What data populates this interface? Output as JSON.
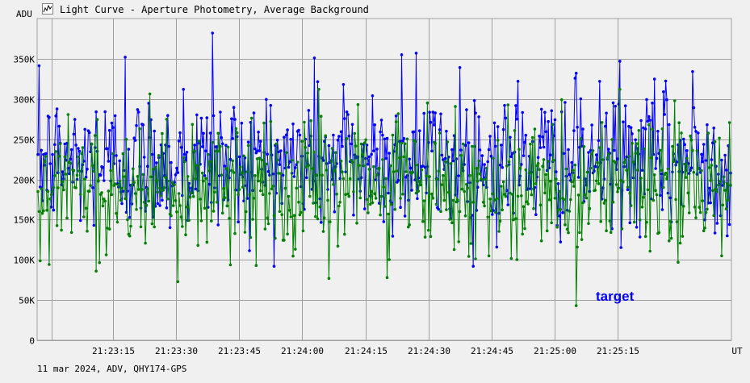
{
  "window": {
    "title": "Light Curve - Aperture Photometry, Average Background",
    "icon": "chart-icon"
  },
  "footer": {
    "info": "11 mar 2024, ADV, QHY174-GPS"
  },
  "colors": {
    "background": "#f0f0f0",
    "grid": "#a0a0a0",
    "axis": "#000000",
    "series_target": "#0000ff",
    "series_comparison": "#008000",
    "label_target": "#0000ff"
  },
  "chart_data": {
    "type": "line",
    "title": "Light Curve - Aperture Photometry, Average Background",
    "xlabel": "UT",
    "ylabel": "ADU",
    "x_start": "21:22:57",
    "x_end": "21:25:42",
    "x_ticks": [
      "21:23:15",
      "21:23:30",
      "21:23:45",
      "21:24:00",
      "21:24:15",
      "21:24:30",
      "21:24:45",
      "21:25:00",
      "21:25:15"
    ],
    "x_unit_label": "UT",
    "y_unit_label": "ADU",
    "y_ticks": [
      "0",
      "50K",
      "100K",
      "150K",
      "200K",
      "250K",
      "300K",
      "350K"
    ],
    "ylim": [
      0,
      400000
    ],
    "grid": true,
    "annotations": [
      {
        "text": "target",
        "series": "blue"
      }
    ],
    "series": [
      {
        "color": "#0000ff",
        "mean": 222000,
        "spread": 43000,
        "min": 92000,
        "max": 382000,
        "sample_values": [
          231000,
          245000,
          210000,
          284000,
          198000,
          352000,
          216000,
          260000,
          241000,
          312000,
          186000,
          382000,
          205000,
          270000,
          233000,
          292000,
          214000,
          255000,
          351000,
          242000,
          318000,
          228000,
          304000,
          251000,
          355000,
          357000,
          271000,
          226000,
          339000,
          298000,
          237000,
          262000,
          322000,
          247000,
          211000,
          284000,
          332000,
          236000,
          266000,
          347000,
          219000,
          278000,
          309000,
          243000,
          334000,
          268000,
          224000
        ]
      },
      {
        "color": "#008000",
        "mean": 192000,
        "spread": 42000,
        "min": 43000,
        "max": 312000,
        "sample_values": [
          185000,
          152000,
          232000,
          86000,
          211000,
          176000,
          263000,
          141000,
          198000,
          227000,
          118000,
          246000,
          167000,
          208000,
          93000,
          272000,
          189000,
          156000,
          234000,
          77000,
          201000,
          293000,
          171000,
          78000,
          245000,
          183000,
          129000,
          222000,
          160000,
          241000,
          105000,
          197000,
          179000,
          252000,
          136000,
          299000,
          43000,
          214000,
          174000,
          312000,
          147000,
          268000,
          190000,
          97000,
          236000,
          163000,
          105000
        ]
      }
    ]
  }
}
